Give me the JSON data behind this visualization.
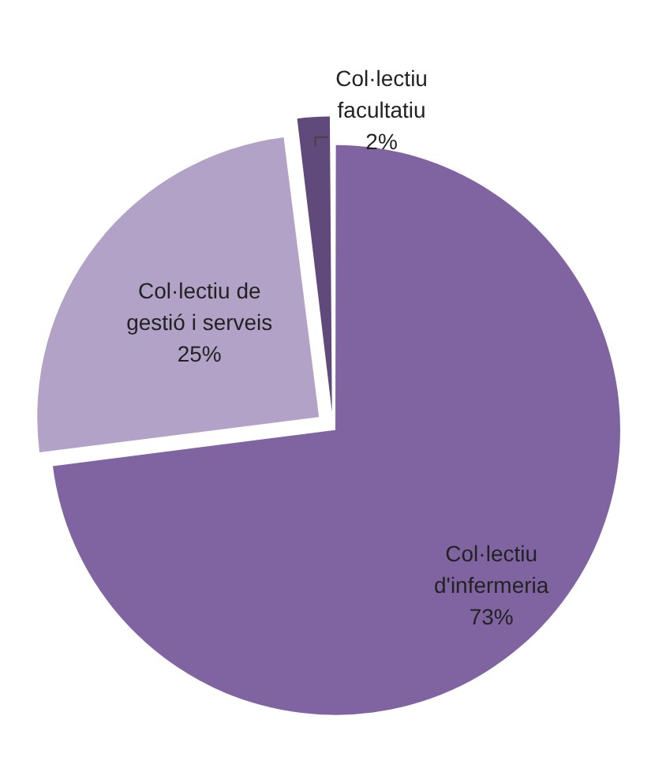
{
  "chart_data": {
    "type": "pie",
    "categories": [
      "Col·lectiu d'infermeria",
      "Col·lectiu de gestió i serveis",
      "Col·lectiu facultatiu"
    ],
    "values": [
      73,
      25,
      2
    ],
    "colors": [
      "#8064a2",
      "#b3a2c7",
      "#604a7b"
    ],
    "value_labels": [
      "73%",
      "25%",
      "2%"
    ],
    "legend": false
  }
}
